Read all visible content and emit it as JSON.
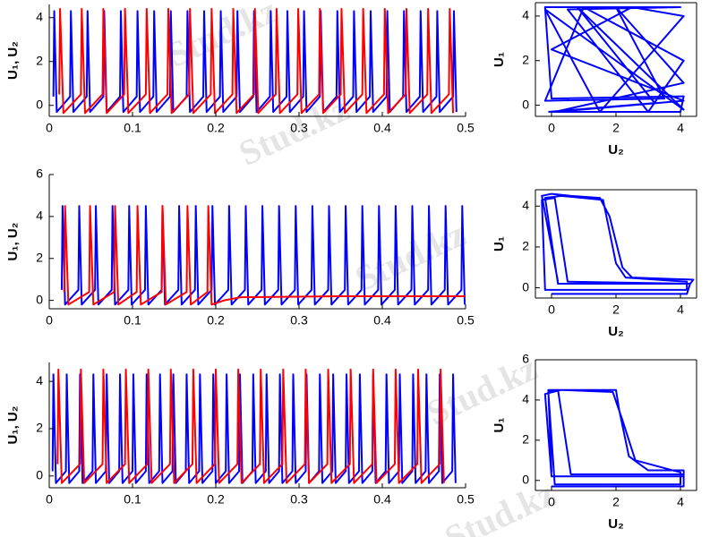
{
  "watermark": "Stud.kz",
  "chart_data": [
    {
      "type": "line",
      "ylabel": "U₁, U₂",
      "xlim": [
        0,
        0.5
      ],
      "ylim": [
        -0.5,
        4.6
      ],
      "xticks": [
        0,
        0.1,
        0.2,
        0.3,
        0.4,
        0.5
      ],
      "yticks": [
        0,
        2,
        4
      ],
      "box": false,
      "series": [
        {
          "color": "#0000ff",
          "x": [
            0.005,
            0.006,
            0.009,
            0.025,
            0.026,
            0.029,
            0.045,
            0.046,
            0.049,
            0.065,
            0.066,
            0.069,
            0.085,
            0.086,
            0.089,
            0.105,
            0.106,
            0.109,
            0.125,
            0.126,
            0.129,
            0.145,
            0.146,
            0.149,
            0.165,
            0.166,
            0.169,
            0.185,
            0.186,
            0.189,
            0.205,
            0.206,
            0.209,
            0.225,
            0.226,
            0.229,
            0.245,
            0.246,
            0.249,
            0.265,
            0.266,
            0.269,
            0.285,
            0.286,
            0.289,
            0.305,
            0.306,
            0.309,
            0.325,
            0.326,
            0.329,
            0.345,
            0.346,
            0.349,
            0.365,
            0.366,
            0.369,
            0.385,
            0.386,
            0.389,
            0.405,
            0.406,
            0.409,
            0.425,
            0.426,
            0.429,
            0.445,
            0.446,
            0.449,
            0.465,
            0.466,
            0.469,
            0.485,
            0.486,
            0.489
          ],
          "values": [
            0.4,
            4.3,
            -0.3,
            0.4,
            4.3,
            -0.3,
            0.4,
            4.3,
            -0.3,
            0.4,
            4.3,
            -0.3,
            0.4,
            4.3,
            -0.3,
            0.4,
            4.3,
            -0.3,
            0.4,
            4.3,
            -0.3,
            0.4,
            4.3,
            -0.3,
            0.4,
            4.3,
            -0.3,
            0.4,
            4.3,
            -0.3,
            0.4,
            4.3,
            -0.3,
            0.4,
            4.3,
            -0.3,
            0.4,
            4.3,
            -0.3,
            0.4,
            4.3,
            -0.3,
            0.4,
            4.3,
            -0.3,
            0.4,
            4.3,
            -0.3,
            0.4,
            4.3,
            -0.3,
            0.4,
            4.3,
            -0.3,
            0.4,
            4.3,
            -0.3,
            0.4,
            4.3,
            -0.3,
            0.4,
            4.3,
            -0.3,
            0.4,
            4.3,
            -0.3,
            0.4,
            4.3,
            -0.3,
            0.4,
            4.3,
            -0.3,
            0.4,
            4.3,
            -0.3
          ]
        },
        {
          "color": "#ff0000",
          "x": [
            0.012,
            0.013,
            0.017,
            0.038,
            0.039,
            0.043,
            0.064,
            0.065,
            0.069,
            0.09,
            0.091,
            0.095,
            0.116,
            0.117,
            0.121,
            0.142,
            0.143,
            0.147,
            0.168,
            0.169,
            0.173,
            0.194,
            0.195,
            0.199,
            0.22,
            0.221,
            0.225,
            0.246,
            0.247,
            0.251,
            0.272,
            0.273,
            0.277,
            0.298,
            0.299,
            0.303,
            0.324,
            0.325,
            0.329,
            0.35,
            0.351,
            0.355,
            0.376,
            0.377,
            0.381,
            0.402,
            0.403,
            0.407,
            0.428,
            0.429,
            0.433,
            0.454,
            0.455,
            0.459,
            0.48,
            0.481,
            0.485
          ],
          "values": [
            0.5,
            4.4,
            -0.35,
            0.5,
            4.4,
            -0.35,
            0.5,
            4.4,
            -0.35,
            0.5,
            4.4,
            -0.35,
            0.5,
            4.4,
            -0.35,
            0.5,
            4.4,
            -0.35,
            0.5,
            4.4,
            -0.35,
            0.5,
            4.4,
            -0.35,
            0.5,
            4.4,
            -0.35,
            0.5,
            4.4,
            -0.35,
            0.5,
            4.4,
            -0.35,
            0.5,
            4.4,
            -0.35,
            0.5,
            4.4,
            -0.35,
            0.5,
            4.4,
            -0.35,
            0.5,
            4.4,
            -0.35,
            0.5,
            4.4,
            -0.35,
            0.5,
            4.4,
            -0.35,
            0.5,
            4.4,
            -0.35,
            0.5,
            4.4,
            -0.35
          ]
        }
      ]
    },
    {
      "type": "line",
      "ylabel": "U₁, U₂",
      "xlim": [
        0,
        0.5
      ],
      "ylim": [
        -0.4,
        6
      ],
      "xticks": [
        0,
        0.1,
        0.2,
        0.3,
        0.4,
        0.5
      ],
      "yticks": [
        0,
        2,
        4,
        6
      ],
      "box": false,
      "series": [
        {
          "color": "#0000ff",
          "x": [
            0.015,
            0.016,
            0.019,
            0.035,
            0.036,
            0.039,
            0.055,
            0.056,
            0.059,
            0.075,
            0.076,
            0.079,
            0.095,
            0.096,
            0.099,
            0.115,
            0.116,
            0.119,
            0.135,
            0.136,
            0.139,
            0.155,
            0.156,
            0.159,
            0.175,
            0.176,
            0.179,
            0.195,
            0.196,
            0.199,
            0.215,
            0.216,
            0.219,
            0.235,
            0.236,
            0.239,
            0.255,
            0.256,
            0.259,
            0.275,
            0.276,
            0.279,
            0.295,
            0.296,
            0.299,
            0.315,
            0.316,
            0.319,
            0.335,
            0.336,
            0.339,
            0.355,
            0.356,
            0.359,
            0.375,
            0.376,
            0.379,
            0.395,
            0.396,
            0.399,
            0.415,
            0.416,
            0.419,
            0.435,
            0.436,
            0.439,
            0.455,
            0.456,
            0.459,
            0.475,
            0.476,
            0.479,
            0.495,
            0.496,
            0.499
          ],
          "values": [
            0.5,
            4.5,
            -0.2,
            0.5,
            4.5,
            -0.2,
            0.5,
            4.5,
            -0.2,
            0.5,
            4.5,
            -0.2,
            0.5,
            4.5,
            -0.2,
            0.5,
            4.5,
            -0.2,
            0.5,
            4.5,
            -0.2,
            0.5,
            4.5,
            -0.2,
            0.5,
            4.5,
            -0.2,
            0.5,
            4.5,
            -0.2,
            0.5,
            4.5,
            -0.2,
            0.5,
            4.5,
            -0.2,
            0.5,
            4.5,
            -0.2,
            0.5,
            4.5,
            -0.2,
            0.5,
            4.5,
            -0.2,
            0.5,
            4.5,
            -0.2,
            0.5,
            4.5,
            -0.2,
            0.5,
            4.5,
            -0.2,
            0.5,
            4.5,
            -0.2,
            0.5,
            4.5,
            -0.2,
            0.5,
            4.5,
            -0.2,
            0.5,
            4.5,
            -0.2,
            0.5,
            4.5,
            -0.2,
            0.5,
            4.5,
            -0.2,
            0.5,
            4.5,
            -0.2
          ]
        },
        {
          "color": "#ff0000",
          "x": [
            0.018,
            0.019,
            0.023,
            0.048,
            0.049,
            0.053,
            0.078,
            0.079,
            0.083,
            0.105,
            0.106,
            0.11,
            0.135,
            0.136,
            0.14,
            0.165,
            0.166,
            0.17,
            0.19,
            0.191,
            0.195,
            0.21,
            0.23,
            0.35,
            0.5
          ],
          "values": [
            0.4,
            4.5,
            -0.2,
            0.4,
            4.5,
            -0.2,
            0.4,
            4.5,
            -0.2,
            0.4,
            4.5,
            -0.2,
            0.4,
            4.5,
            -0.2,
            0.4,
            4.5,
            -0.2,
            0.4,
            4.5,
            -0.2,
            0,
            0.15,
            0.2,
            0.2
          ]
        }
      ]
    },
    {
      "type": "line",
      "ylabel": "U₁, U₂",
      "xlim": [
        0,
        0.5
      ],
      "ylim": [
        -0.5,
        4.8
      ],
      "xticks": [
        0,
        0.1,
        0.2,
        0.3,
        0.4,
        0.5
      ],
      "yticks": [
        0,
        2,
        4
      ],
      "box": false,
      "series": [
        {
          "color": "#0000ff",
          "x": [
            0.004,
            0.005,
            0.008,
            0.02,
            0.021,
            0.024,
            0.036,
            0.037,
            0.04,
            0.052,
            0.053,
            0.056,
            0.068,
            0.069,
            0.072,
            0.084,
            0.085,
            0.088,
            0.1,
            0.101,
            0.104,
            0.116,
            0.117,
            0.12,
            0.132,
            0.133,
            0.136,
            0.148,
            0.149,
            0.152,
            0.164,
            0.165,
            0.168,
            0.18,
            0.181,
            0.184,
            0.196,
            0.197,
            0.2,
            0.212,
            0.213,
            0.216,
            0.228,
            0.229,
            0.232,
            0.244,
            0.245,
            0.248,
            0.26,
            0.261,
            0.264,
            0.276,
            0.277,
            0.28,
            0.292,
            0.293,
            0.296,
            0.308,
            0.309,
            0.312,
            0.324,
            0.325,
            0.328,
            0.34,
            0.341,
            0.344,
            0.356,
            0.357,
            0.36,
            0.372,
            0.373,
            0.376,
            0.388,
            0.389,
            0.392,
            0.404,
            0.405,
            0.408,
            0.42,
            0.421,
            0.424,
            0.436,
            0.437,
            0.44,
            0.452,
            0.453,
            0.456,
            0.468,
            0.469,
            0.472,
            0.484,
            0.485,
            0.488
          ],
          "values": [
            0.2,
            4.3,
            -0.3,
            0.2,
            4.3,
            -0.3,
            0.2,
            4.3,
            -0.3,
            0.2,
            4.3,
            -0.3,
            0.2,
            4.3,
            -0.3,
            0.2,
            4.3,
            -0.3,
            0.2,
            4.3,
            -0.3,
            0.2,
            4.3,
            -0.3,
            0.2,
            4.3,
            -0.3,
            0.2,
            4.3,
            -0.3,
            0.2,
            4.3,
            -0.3,
            0.2,
            4.3,
            -0.3,
            0.2,
            4.3,
            -0.3,
            0.2,
            4.3,
            -0.3,
            0.2,
            4.3,
            -0.3,
            0.2,
            4.3,
            -0.3,
            0.2,
            4.3,
            -0.3,
            0.2,
            4.3,
            -0.3,
            0.2,
            4.3,
            -0.3,
            0.2,
            4.3,
            -0.3,
            0.2,
            4.3,
            -0.3,
            0.2,
            4.3,
            -0.3,
            0.2,
            4.3,
            -0.3,
            0.2,
            4.3,
            -0.3,
            0.2,
            4.3,
            -0.3,
            0.2,
            4.3,
            -0.3,
            0.2,
            4.3,
            -0.3,
            0.2,
            4.3,
            -0.3,
            0.2,
            4.3,
            -0.3,
            0.2,
            4.3,
            -0.3,
            0.2,
            4.3,
            -0.3
          ]
        },
        {
          "color": "#ff0000",
          "x": [
            0.01,
            0.011,
            0.015,
            0.037,
            0.038,
            0.042,
            0.064,
            0.065,
            0.069,
            0.091,
            0.092,
            0.096,
            0.118,
            0.119,
            0.123,
            0.145,
            0.146,
            0.15,
            0.172,
            0.173,
            0.177,
            0.199,
            0.2,
            0.204,
            0.226,
            0.227,
            0.231,
            0.253,
            0.254,
            0.258,
            0.28,
            0.281,
            0.285,
            0.307,
            0.308,
            0.312,
            0.334,
            0.335,
            0.339,
            0.361,
            0.362,
            0.366,
            0.388,
            0.389,
            0.393,
            0.415,
            0.416,
            0.42,
            0.442,
            0.443,
            0.447,
            0.469,
            0.47,
            0.474
          ],
          "values": [
            0.5,
            4.5,
            -0.3,
            0.5,
            4.5,
            -0.3,
            0.5,
            4.5,
            -0.3,
            0.5,
            4.5,
            -0.3,
            0.5,
            4.5,
            -0.3,
            0.5,
            4.5,
            -0.3,
            0.5,
            4.5,
            -0.3,
            0.5,
            4.5,
            -0.3,
            0.5,
            4.5,
            -0.3,
            0.5,
            4.5,
            -0.3,
            0.5,
            4.5,
            -0.3,
            0.5,
            4.5,
            -0.3,
            0.5,
            4.5,
            -0.3,
            0.5,
            4.5,
            -0.3,
            0.5,
            4.5,
            -0.3,
            0.5,
            4.5,
            -0.3,
            0.5,
            4.5,
            -0.3,
            0.5,
            4.5,
            -0.3
          ]
        }
      ]
    },
    {
      "type": "line",
      "xlabel": "U₂",
      "ylabel": "U₁",
      "xlim": [
        -0.5,
        4.5
      ],
      "ylim": [
        -0.5,
        4.6
      ],
      "xticks": [
        0,
        2,
        4
      ],
      "yticks": [
        0,
        2,
        4
      ],
      "box": true,
      "series": [
        {
          "color": "#0000ff",
          "x": [
            0,
            4,
            4.1,
            0,
            -0.2,
            4,
            0.5,
            3,
            4.1,
            1,
            -0.2,
            3.5,
            2,
            4.1,
            0.1,
            4.1,
            0,
            2.5,
            4.1,
            1.5,
            -0.2,
            4.1,
            0.8,
            3.2,
            -0.1
          ],
          "values": [
            -0.3,
            -0.3,
            0.4,
            0.3,
            4.4,
            4.4,
            4.3,
            -0.3,
            2,
            4.4,
            0.2,
            0.3,
            4.4,
            1,
            -0.3,
            0.2,
            2.5,
            4.4,
            4,
            -0.3,
            4.3,
            -0.2,
            4.4,
            0.1,
            -0.3
          ]
        }
      ]
    },
    {
      "type": "line",
      "xlabel": "U₂",
      "ylabel": "U₁",
      "xlim": [
        -0.5,
        4.5
      ],
      "ylim": [
        -0.5,
        4.8
      ],
      "xticks": [
        0,
        2,
        4
      ],
      "yticks": [
        0,
        2,
        4
      ],
      "box": true,
      "series": [
        {
          "color": "#0000ff",
          "x": [
            0.2,
            -0.3,
            0,
            0.6,
            1.5,
            1.8,
            2.2,
            2.5,
            4.4,
            4.3,
            0.2,
            -0.2,
            0.3,
            1.6,
            2,
            2.3,
            4.2,
            4.2,
            -0.2,
            -0.3,
            0.1,
            0.5,
            4.3,
            4.2,
            0
          ],
          "values": [
            0.3,
            4.5,
            4.6,
            4.5,
            4.4,
            3.5,
            1,
            0.5,
            0.4,
            0.2,
            0.2,
            4.4,
            4.5,
            4.3,
            1.2,
            0.5,
            0.3,
            -0.1,
            -0.1,
            4.3,
            4.4,
            0.3,
            0.2,
            -0.3,
            -0.3
          ]
        }
      ]
    },
    {
      "type": "line",
      "xlabel": "U₂",
      "ylabel": "U₁",
      "xlim": [
        -0.5,
        4.5
      ],
      "ylim": [
        -0.5,
        6
      ],
      "xticks": [
        0,
        2,
        4
      ],
      "yticks": [
        0,
        2,
        4,
        6
      ],
      "box": true,
      "series": [
        {
          "color": "#0000ff",
          "x": [
            0,
            -0.1,
            0.5,
            2,
            2.1,
            2.4,
            3,
            4.1,
            4.1,
            0,
            -0.2,
            0.3,
            1.9,
            2.2,
            2.6,
            4,
            4,
            0.1,
            -0.1,
            0.2,
            0.6,
            4.1,
            4.1,
            0
          ],
          "values": [
            0.4,
            4.5,
            4.5,
            4.5,
            3.5,
            1.2,
            0.5,
            0.5,
            0.2,
            0.2,
            4.3,
            4.5,
            4.4,
            3,
            1,
            0.4,
            -0.2,
            -0.2,
            4.4,
            4.5,
            0.3,
            0.3,
            -0.3,
            -0.3
          ]
        }
      ]
    }
  ]
}
